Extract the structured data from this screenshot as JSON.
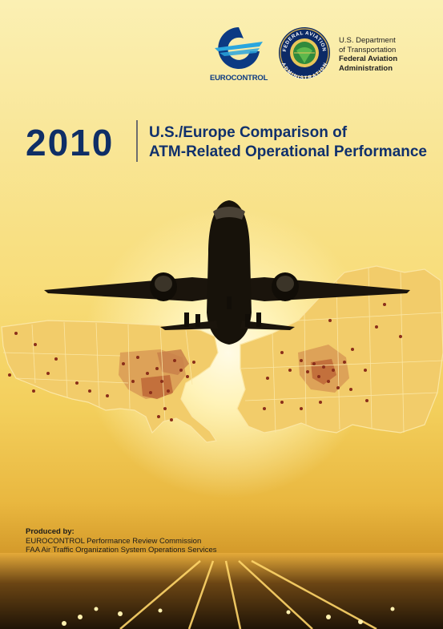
{
  "logos": {
    "eurocontrol_name": "EUROCONTROL",
    "faa_seal_text_top": "FEDERAL AVIATION",
    "faa_seal_text_bottom": "ADMINISTRATION"
  },
  "dot": {
    "line1": "U.S. Department",
    "line2": "of Transportation",
    "line3": "Federal Aviation",
    "line4": "Administration"
  },
  "title": {
    "year": "2010",
    "line1": "U.S./Europe Comparison of",
    "line2": "ATM-Related Operational Performance"
  },
  "credits": {
    "heading": "Produced by:",
    "line1": "EUROCONTROL Performance Review Commission",
    "line2": "FAA Air Traffic Organization System Operations Services"
  },
  "colors": {
    "title_blue": "#10306c",
    "eurocontrol_blue": "#0c3a83",
    "map_fill": "#f2cc6a",
    "map_hot": "#c06a3a",
    "airport_dot": "#8a2e1a"
  },
  "icons": [
    "eurocontrol-logo",
    "faa-seal",
    "airplane",
    "us-map",
    "europe-map",
    "runway-lights"
  ]
}
